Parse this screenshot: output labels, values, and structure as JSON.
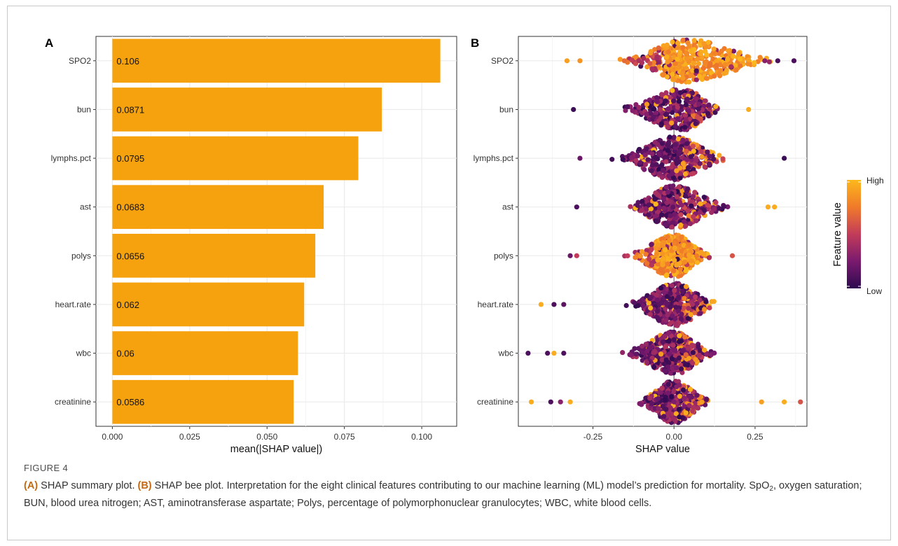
{
  "figure": {
    "label": "FIGURE 4",
    "caption": {
      "a_tag": "(A)",
      "a_text": " SHAP summary plot. ",
      "b_tag": "(B)",
      "b_text_pre": " SHAP bee plot. Interpretation for the eight clinical features contributing to our machine learning (ML) model’s prediction for mortality. SpO",
      "b_sub": "2",
      "b_text_post": ", oxygen saturation; BUN, blood urea nitrogen; AST, aminotransferase aspartate; Polys, percentage of polymorphonuclear granulocytes; WBC, white blood cells."
    }
  },
  "chart_data": [
    {
      "panel": "A",
      "type": "bar",
      "orientation": "horizontal",
      "categories": [
        "SPO2",
        "bun",
        "lymphs.pct",
        "ast",
        "polys",
        "heart.rate",
        "wbc",
        "creatinine"
      ],
      "values": [
        0.106,
        0.0871,
        0.0795,
        0.0683,
        0.0656,
        0.062,
        0.06,
        0.0586
      ],
      "value_labels": [
        "0.106",
        "0.0871",
        "0.0795",
        "0.0683",
        "0.0656",
        "0.062",
        "0.06",
        "0.0586"
      ],
      "xlabel": "mean(|SHAP value|)",
      "ylabel": "",
      "xticks": [
        "0.000",
        "0.025",
        "0.050",
        "0.075",
        "0.100"
      ],
      "xtick_values": [
        0,
        0.025,
        0.05,
        0.075,
        0.1
      ],
      "xlim": [
        -0.0053,
        0.1113
      ],
      "grid": true,
      "bar_color": "#f5a20e"
    },
    {
      "panel": "B",
      "type": "scatter",
      "subtype": "beeswarm",
      "categories": [
        "SPO2",
        "bun",
        "lymphs.pct",
        "ast",
        "polys",
        "heart.rate",
        "wbc",
        "creatinine"
      ],
      "xlabel": "SHAP value",
      "ylabel": "",
      "xticks": [
        "-0.25",
        "0.00",
        "0.25"
      ],
      "xtick_values": [
        -0.25,
        0,
        0.25
      ],
      "xlim": [
        -0.48,
        0.41
      ],
      "grid": true,
      "zero_line": true,
      "series": [
        {
          "feature": "SPO2",
          "range": [
            -0.33,
            0.37
          ],
          "peak": 0.04,
          "spread_left": 0.14,
          "spread_right": 0.19,
          "dominant_color": "high",
          "sample_points": [
            {
              "x": -0.33,
              "c": 0.9
            },
            {
              "x": -0.29,
              "c": 0.85
            },
            {
              "x": 0.28,
              "c": 0.3
            },
            {
              "x": 0.32,
              "c": 0.1
            },
            {
              "x": 0.37,
              "c": 0.1
            }
          ]
        },
        {
          "feature": "bun",
          "range": [
            -0.31,
            0.24
          ],
          "peak": 0.03,
          "spread_left": 0.14,
          "spread_right": 0.08,
          "dominant_color": "low",
          "sample_points": [
            {
              "x": -0.31,
              "c": 0.05
            },
            {
              "x": 0.23,
              "c": 0.95
            }
          ]
        },
        {
          "feature": "lymphs.pct",
          "range": [
            -0.29,
            0.34
          ],
          "peak": 0.0,
          "spread_left": 0.13,
          "spread_right": 0.12,
          "dominant_color": "low",
          "sample_points": [
            {
              "x": -0.29,
              "c": 0.2
            },
            {
              "x": 0.34,
              "c": 0.05
            }
          ]
        },
        {
          "feature": "ast",
          "range": [
            -0.3,
            0.31
          ],
          "peak": 0.0,
          "spread_left": 0.1,
          "spread_right": 0.12,
          "dominant_color": "low",
          "sample_points": [
            {
              "x": -0.3,
              "c": 0.1
            },
            {
              "x": 0.29,
              "c": 0.95
            },
            {
              "x": 0.31,
              "c": 0.95
            }
          ]
        },
        {
          "feature": "polys",
          "range": [
            -0.32,
            0.18
          ],
          "peak": 0.0,
          "spread_left": 0.1,
          "spread_right": 0.08,
          "dominant_color": "high",
          "sample_points": [
            {
              "x": -0.32,
              "c": 0.2
            },
            {
              "x": -0.3,
              "c": 0.5
            },
            {
              "x": 0.18,
              "c": 0.6
            }
          ]
        },
        {
          "feature": "heart.rate",
          "range": [
            -0.41,
            0.29
          ],
          "peak": 0.0,
          "spread_left": 0.1,
          "spread_right": 0.1,
          "dominant_color": "low",
          "sample_points": [
            {
              "x": -0.41,
              "c": 0.95
            },
            {
              "x": -0.37,
              "c": 0.1
            },
            {
              "x": -0.34,
              "c": 0.15
            }
          ]
        },
        {
          "feature": "wbc",
          "range": [
            -0.45,
            0.25
          ],
          "peak": 0.0,
          "spread_left": 0.11,
          "spread_right": 0.09,
          "dominant_color": "low",
          "sample_points": [
            {
              "x": -0.45,
              "c": 0.1
            },
            {
              "x": -0.39,
              "c": 0.1
            },
            {
              "x": -0.37,
              "c": 0.95
            },
            {
              "x": -0.34,
              "c": 0.1
            }
          ]
        },
        {
          "feature": "creatinine",
          "range": [
            -0.44,
            0.39
          ],
          "peak": 0.0,
          "spread_left": 0.08,
          "spread_right": 0.08,
          "dominant_color": "low",
          "sample_points": [
            {
              "x": -0.44,
              "c": 0.95
            },
            {
              "x": -0.38,
              "c": 0.1
            },
            {
              "x": -0.35,
              "c": 0.3
            },
            {
              "x": -0.32,
              "c": 0.95
            },
            {
              "x": 0.27,
              "c": 0.9
            },
            {
              "x": 0.34,
              "c": 0.95
            },
            {
              "x": 0.39,
              "c": 0.6
            }
          ]
        }
      ],
      "colorbar": {
        "title": "Feature value",
        "high_label": "High",
        "low_label": "Low",
        "colors": [
          "#2d0a50",
          "#7a1a6e",
          "#c23c5a",
          "#f07a2a",
          "#fcb81c"
        ]
      }
    }
  ]
}
